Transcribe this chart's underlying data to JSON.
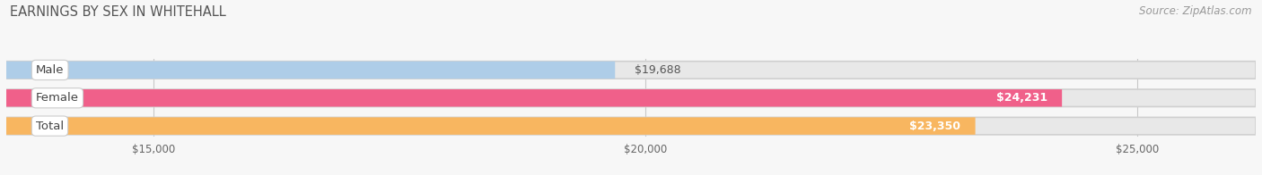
{
  "title": "EARNINGS BY SEX IN WHITEHALL",
  "source": "Source: ZipAtlas.com",
  "categories": [
    "Male",
    "Female",
    "Total"
  ],
  "values": [
    19688,
    24231,
    23350
  ],
  "bar_colors": [
    "#aecde8",
    "#f0608a",
    "#f8b660"
  ],
  "xmin": 13500,
  "xmax": 26200,
  "xticks": [
    15000,
    20000,
    25000
  ],
  "xtick_labels": [
    "$15,000",
    "$20,000",
    "$25,000"
  ],
  "bar_height": 0.62,
  "background_color": "#f7f7f7",
  "bar_bg_color": "#e8e8e8",
  "title_fontsize": 10.5,
  "label_fontsize": 9.5,
  "value_fontsize": 9,
  "source_fontsize": 8.5,
  "value_labels": [
    "$19,688",
    "$24,231",
    "$23,350"
  ],
  "value_inside": [
    false,
    true,
    true
  ]
}
